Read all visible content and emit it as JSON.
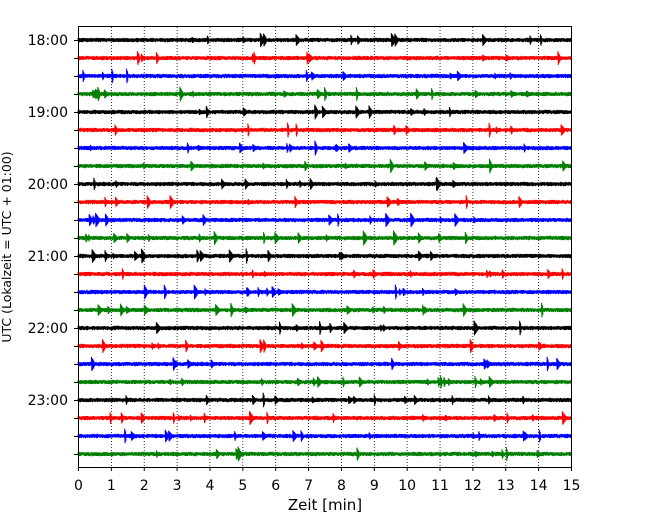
{
  "chart_data": {
    "type": "line",
    "title": "",
    "xlabel": "Zeit  [min]",
    "ylabel": "UTC (Lokalzeit = UTC + 01:00)",
    "xlim": [
      0,
      15
    ],
    "x_ticks": [
      0,
      1,
      2,
      3,
      4,
      5,
      6,
      7,
      8,
      9,
      10,
      11,
      12,
      13,
      14,
      15
    ],
    "x_tick_labels": [
      "0",
      "1",
      "2",
      "3",
      "4",
      "5",
      "6",
      "7",
      "8",
      "9",
      "10",
      "11",
      "12",
      "13",
      "14",
      "15"
    ],
    "y_tick_labels": [
      "18:00",
      "19:00",
      "20:00",
      "21:00",
      "22:00",
      "23:00"
    ],
    "grid": "vertical dotted",
    "trace_colors": [
      "#000000",
      "#ff0000",
      "#0000ff",
      "#008000"
    ],
    "traces": [
      {
        "start": "18:00",
        "color": "#000000"
      },
      {
        "start": "18:15",
        "color": "#ff0000"
      },
      {
        "start": "18:30",
        "color": "#0000ff"
      },
      {
        "start": "18:45",
        "color": "#008000"
      },
      {
        "start": "19:00",
        "color": "#000000"
      },
      {
        "start": "19:15",
        "color": "#ff0000"
      },
      {
        "start": "19:30",
        "color": "#0000ff"
      },
      {
        "start": "19:45",
        "color": "#008000"
      },
      {
        "start": "20:00",
        "color": "#000000"
      },
      {
        "start": "20:15",
        "color": "#ff0000"
      },
      {
        "start": "20:30",
        "color": "#0000ff"
      },
      {
        "start": "20:45",
        "color": "#008000"
      },
      {
        "start": "21:00",
        "color": "#000000"
      },
      {
        "start": "21:15",
        "color": "#ff0000"
      },
      {
        "start": "21:30",
        "color": "#0000ff"
      },
      {
        "start": "21:45",
        "color": "#008000"
      },
      {
        "start": "22:00",
        "color": "#000000"
      },
      {
        "start": "22:15",
        "color": "#ff0000"
      },
      {
        "start": "22:30",
        "color": "#0000ff"
      },
      {
        "start": "22:45",
        "color": "#008000"
      },
      {
        "start": "23:00",
        "color": "#000000"
      },
      {
        "start": "23:15",
        "color": "#ff0000"
      },
      {
        "start": "23:30",
        "color": "#0000ff"
      },
      {
        "start": "23:45",
        "color": "#008000"
      }
    ]
  }
}
